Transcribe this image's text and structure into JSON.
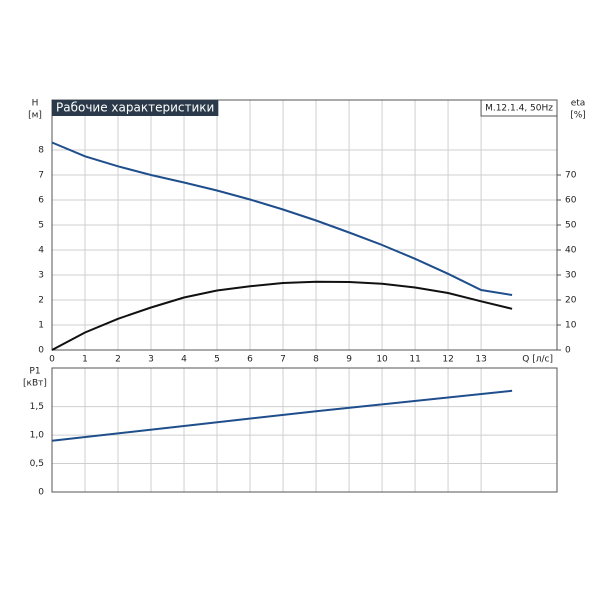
{
  "chart_data": [
    {
      "type": "line",
      "title": "Рабочие характеристики",
      "model": "M.12.1.4, 50Hz",
      "y_label": "H",
      "y_unit": "[м]",
      "y2_label": "eta",
      "y2_unit": "[%]",
      "x_label": "Q [л/с]",
      "xlim": [
        0,
        15.3
      ],
      "xticks": [
        0,
        1,
        2,
        3,
        4,
        5,
        6,
        7,
        8,
        9,
        10,
        11,
        12,
        13
      ],
      "ylim": [
        0,
        10
      ],
      "yticks": [
        0,
        1,
        2,
        3,
        4,
        5,
        6,
        7,
        8
      ],
      "y2lim": [
        0,
        100
      ],
      "y2ticks": [
        0,
        10,
        20,
        30,
        40,
        50,
        60,
        70
      ],
      "grid": true,
      "series": [
        {
          "color": "#1f4e8c",
          "x": [
            0,
            1,
            2,
            3,
            4,
            5,
            6,
            7,
            8,
            9,
            10,
            11,
            12,
            13,
            13.94
          ],
          "values": [
            8.3,
            7.75,
            7.35,
            7.0,
            6.7,
            6.38,
            6.02,
            5.62,
            5.18,
            4.7,
            4.2,
            3.65,
            3.05,
            2.4,
            2.2
          ]
        },
        {
          "color": "#111111",
          "axis": "y2",
          "x": [
            0,
            1,
            2,
            3,
            4,
            5,
            6,
            7,
            8,
            9,
            10,
            11,
            12,
            13,
            13.94
          ],
          "values": [
            0,
            7,
            12.5,
            17,
            21,
            23.8,
            25.5,
            26.8,
            27.3,
            27.2,
            26.5,
            25,
            22.8,
            19.5,
            16.5
          ]
        }
      ]
    },
    {
      "type": "line",
      "y_label": "P1",
      "y_unit": "[кВт]",
      "xlim": [
        0,
        15.3
      ],
      "xticks": [
        0,
        1,
        2,
        3,
        4,
        5,
        6,
        7,
        8,
        9,
        10,
        11,
        12,
        13
      ],
      "ylim": [
        0,
        2.18
      ],
      "yticks": [
        0,
        {
          "value": 0.5,
          "label": "0,5"
        },
        {
          "value": 1.0,
          "label": "1,0"
        },
        {
          "value": 1.5,
          "label": "1,5"
        }
      ],
      "grid": true,
      "series": [
        {
          "color": "#1f4e8c",
          "x": [
            0,
            4,
            8,
            13.94
          ],
          "values": [
            0.9,
            1.16,
            1.42,
            1.78
          ]
        }
      ]
    }
  ]
}
